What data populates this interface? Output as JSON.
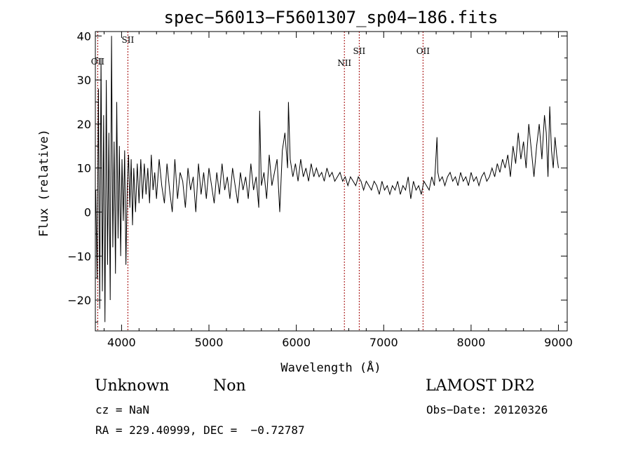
{
  "chart_data": {
    "type": "line",
    "title": "spec−56013−F5601307_sp04−186.fits",
    "xlabel": "Wavelength (Å)",
    "ylabel": "Flux (relative)",
    "xlim": [
      3700,
      9100
    ],
    "ylim": [
      -27,
      41
    ],
    "xticks": [
      4000,
      5000,
      6000,
      7000,
      8000,
      9000
    ],
    "yticks": [
      -20,
      -10,
      0,
      10,
      20,
      30,
      40
    ],
    "ytick_labels": [
      "−20",
      "−10",
      "0",
      "10",
      "20",
      "30",
      "40"
    ],
    "grid": false,
    "line_color": "#000000",
    "marker_color": "#a00000",
    "line_markers": [
      {
        "label": "OII",
        "x": 3727
      },
      {
        "label": "SII",
        "x": 4072
      },
      {
        "label": "NII",
        "x": 6550
      },
      {
        "label": "SII",
        "x": 6720
      },
      {
        "label": "OII",
        "x": 7450
      }
    ],
    "series": [
      {
        "x": [
          3705,
          3720,
          3735,
          3750,
          3765,
          3780,
          3795,
          3810,
          3825,
          3840,
          3855,
          3870,
          3885,
          3900,
          3915,
          3930,
          3945,
          3960,
          3975,
          3990,
          4005,
          4020,
          4035,
          4050,
          4065,
          4080,
          4095,
          4110,
          4125,
          4140,
          4160,
          4180,
          4200,
          4220,
          4240,
          4260,
          4280,
          4300,
          4320,
          4340,
          4360,
          4380,
          4400,
          4430,
          4460,
          4490,
          4520,
          4550,
          4580,
          4610,
          4640,
          4670,
          4700,
          4730,
          4760,
          4790,
          4820,
          4850,
          4880,
          4910,
          4940,
          4970,
          5000,
          5030,
          5060,
          5090,
          5120,
          5150,
          5180,
          5210,
          5240,
          5270,
          5300,
          5330,
          5360,
          5390,
          5420,
          5450,
          5480,
          5510,
          5540,
          5570,
          5580,
          5600,
          5630,
          5660,
          5690,
          5720,
          5750,
          5780,
          5810,
          5840,
          5870,
          5900,
          5910,
          5930,
          5960,
          5990,
          6020,
          6050,
          6080,
          6110,
          6140,
          6170,
          6200,
          6230,
          6260,
          6290,
          6320,
          6350,
          6380,
          6410,
          6440,
          6470,
          6500,
          6530,
          6560,
          6590,
          6620,
          6650,
          6680,
          6710,
          6740,
          6770,
          6800,
          6830,
          6860,
          6890,
          6920,
          6950,
          6980,
          7010,
          7040,
          7070,
          7100,
          7130,
          7160,
          7190,
          7220,
          7250,
          7280,
          7310,
          7340,
          7370,
          7400,
          7430,
          7460,
          7490,
          7520,
          7550,
          7580,
          7610,
          7620,
          7640,
          7670,
          7700,
          7730,
          7760,
          7790,
          7820,
          7850,
          7880,
          7910,
          7940,
          7970,
          8000,
          8030,
          8060,
          8090,
          8120,
          8150,
          8180,
          8210,
          8240,
          8270,
          8300,
          8330,
          8360,
          8390,
          8420,
          8450,
          8480,
          8510,
          8540,
          8570,
          8600,
          8630,
          8660,
          8690,
          8720,
          8750,
          8780,
          8810,
          8840,
          8860,
          8880,
          8900,
          8920,
          8940,
          8960,
          8980,
          9000
        ],
        "y": [
          5,
          -15,
          28,
          -22,
          35,
          -18,
          22,
          -25,
          30,
          -12,
          18,
          -20,
          40,
          -8,
          16,
          -14,
          25,
          -6,
          15,
          -10,
          12,
          -2,
          14,
          -12,
          6,
          13,
          1,
          12,
          -3,
          10,
          0,
          11,
          2,
          12,
          3,
          11,
          4,
          10,
          2,
          13,
          5,
          9,
          3,
          12,
          6,
          2,
          11,
          5,
          0,
          12,
          3,
          9,
          7,
          1,
          10,
          5,
          8,
          0,
          11,
          4,
          9,
          3,
          10,
          6,
          2,
          9,
          4,
          11,
          5,
          8,
          3,
          10,
          6,
          2,
          9,
          5,
          8,
          3,
          11,
          5,
          8,
          1,
          23,
          6,
          9,
          3,
          13,
          6,
          9,
          12,
          0,
          14,
          18,
          10,
          25,
          12,
          8,
          11,
          7,
          12,
          8,
          10,
          7,
          11,
          8,
          10,
          8,
          9,
          7,
          10,
          8,
          9,
          7,
          8,
          9,
          7,
          8,
          6,
          8,
          7,
          6,
          8,
          7,
          5,
          7,
          6,
          5,
          7,
          6,
          4,
          7,
          5,
          6,
          4,
          6,
          5,
          7,
          4,
          6,
          5,
          8,
          3,
          7,
          5,
          6,
          4,
          7,
          6,
          5,
          8,
          6,
          17,
          9,
          7,
          8,
          6,
          8,
          9,
          7,
          8,
          6,
          9,
          7,
          8,
          6,
          9,
          7,
          8,
          6,
          8,
          9,
          7,
          8,
          10,
          8,
          11,
          9,
          12,
          10,
          13,
          8,
          15,
          11,
          18,
          12,
          16,
          10,
          20,
          14,
          8,
          15,
          20,
          12,
          22,
          18,
          8,
          24,
          14,
          10,
          17,
          13,
          10
        ],
        "line_color": "#000000"
      }
    ]
  },
  "info": {
    "object_class": "Unknown",
    "subclass": "Non",
    "cz": "cz = NaN",
    "coords": "RA = 229.40999, DEC =  −0.72787",
    "survey": "LAMOST DR2",
    "obs_date": "Obs−Date: 20120326"
  }
}
